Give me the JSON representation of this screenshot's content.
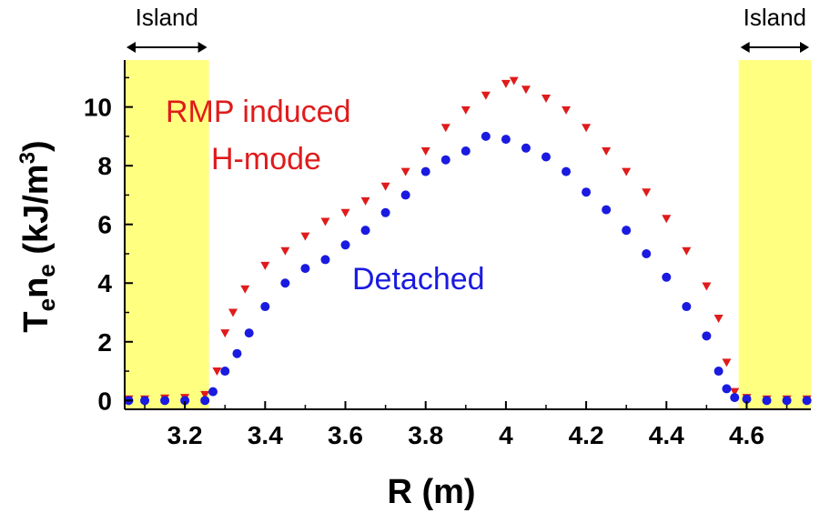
{
  "chart_data": {
    "type": "scatter",
    "title": "",
    "xlabel": "R (m)",
    "ylabel": {
      "base1": "T",
      "sub1": "e",
      "base2": "n",
      "sub2": "e",
      "unit_pre": " (kJ/m",
      "unit_sup": "3",
      "unit_post": ")"
    },
    "xlim": [
      3.05,
      4.76
    ],
    "ylim": [
      -0.3,
      11.6
    ],
    "xticks": [
      3.2,
      3.4,
      3.6,
      3.8,
      4,
      4.2,
      4.4,
      4.6
    ],
    "xtick_labels": [
      "3.2",
      "3.4",
      "3.6",
      "3.8",
      "4",
      "4.2",
      "4.4",
      "4.6"
    ],
    "yticks": [
      0,
      2,
      4,
      6,
      8,
      10
    ],
    "ytick_labels": [
      "0",
      "2",
      "4",
      "6",
      "8",
      "10"
    ],
    "grid": false,
    "colors": {
      "rmp": "#e01b1b",
      "detached": "#1a1ae0",
      "island": "#ffff80"
    },
    "islands": [
      {
        "label": "Island",
        "x_range": [
          3.05,
          3.26
        ]
      },
      {
        "label": "Island",
        "x_range": [
          4.58,
          4.76
        ]
      }
    ],
    "annotations": {
      "rmp_line1": "RMP induced",
      "rmp_line2": "H-mode",
      "detached": "Detached"
    },
    "series": [
      {
        "name": "RMP induced H-mode",
        "marker": "triangle-down",
        "points": [
          [
            3.06,
            0.05
          ],
          [
            3.1,
            0.05
          ],
          [
            3.15,
            0.08
          ],
          [
            3.2,
            0.1
          ],
          [
            3.25,
            0.2
          ],
          [
            3.28,
            1.0
          ],
          [
            3.3,
            2.3
          ],
          [
            3.32,
            3.0
          ],
          [
            3.35,
            3.8
          ],
          [
            3.4,
            4.6
          ],
          [
            3.45,
            5.1
          ],
          [
            3.5,
            5.6
          ],
          [
            3.55,
            6.1
          ],
          [
            3.6,
            6.4
          ],
          [
            3.65,
            6.8
          ],
          [
            3.7,
            7.3
          ],
          [
            3.75,
            7.8
          ],
          [
            3.8,
            8.5
          ],
          [
            3.85,
            9.3
          ],
          [
            3.9,
            9.9
          ],
          [
            3.95,
            10.4
          ],
          [
            4.0,
            10.8
          ],
          [
            4.02,
            10.9
          ],
          [
            4.05,
            10.6
          ],
          [
            4.1,
            10.3
          ],
          [
            4.15,
            9.9
          ],
          [
            4.2,
            9.3
          ],
          [
            4.25,
            8.5
          ],
          [
            4.3,
            7.8
          ],
          [
            4.35,
            7.1
          ],
          [
            4.4,
            6.2
          ],
          [
            4.45,
            5.1
          ],
          [
            4.5,
            3.9
          ],
          [
            4.53,
            2.8
          ],
          [
            4.55,
            1.3
          ],
          [
            4.57,
            0.3
          ],
          [
            4.6,
            0.1
          ],
          [
            4.65,
            0.05
          ],
          [
            4.7,
            0.05
          ],
          [
            4.75,
            0.05
          ]
        ]
      },
      {
        "name": "Detached",
        "marker": "circle",
        "points": [
          [
            3.06,
            0.0
          ],
          [
            3.1,
            0.0
          ],
          [
            3.15,
            0.0
          ],
          [
            3.2,
            0.0
          ],
          [
            3.25,
            0.0
          ],
          [
            3.27,
            0.3
          ],
          [
            3.3,
            1.0
          ],
          [
            3.33,
            1.6
          ],
          [
            3.36,
            2.3
          ],
          [
            3.4,
            3.2
          ],
          [
            3.45,
            4.0
          ],
          [
            3.5,
            4.5
          ],
          [
            3.55,
            4.8
          ],
          [
            3.6,
            5.3
          ],
          [
            3.65,
            5.8
          ],
          [
            3.7,
            6.4
          ],
          [
            3.75,
            7.0
          ],
          [
            3.8,
            7.8
          ],
          [
            3.85,
            8.2
          ],
          [
            3.9,
            8.5
          ],
          [
            3.95,
            9.0
          ],
          [
            4.0,
            8.9
          ],
          [
            4.05,
            8.6
          ],
          [
            4.1,
            8.3
          ],
          [
            4.15,
            7.8
          ],
          [
            4.2,
            7.1
          ],
          [
            4.25,
            6.5
          ],
          [
            4.3,
            5.8
          ],
          [
            4.35,
            5.0
          ],
          [
            4.4,
            4.2
          ],
          [
            4.45,
            3.2
          ],
          [
            4.5,
            2.2
          ],
          [
            4.53,
            1.0
          ],
          [
            4.55,
            0.4
          ],
          [
            4.57,
            0.1
          ],
          [
            4.6,
            0.05
          ],
          [
            4.65,
            0.0
          ],
          [
            4.7,
            0.0
          ],
          [
            4.75,
            0.0
          ]
        ]
      }
    ]
  }
}
